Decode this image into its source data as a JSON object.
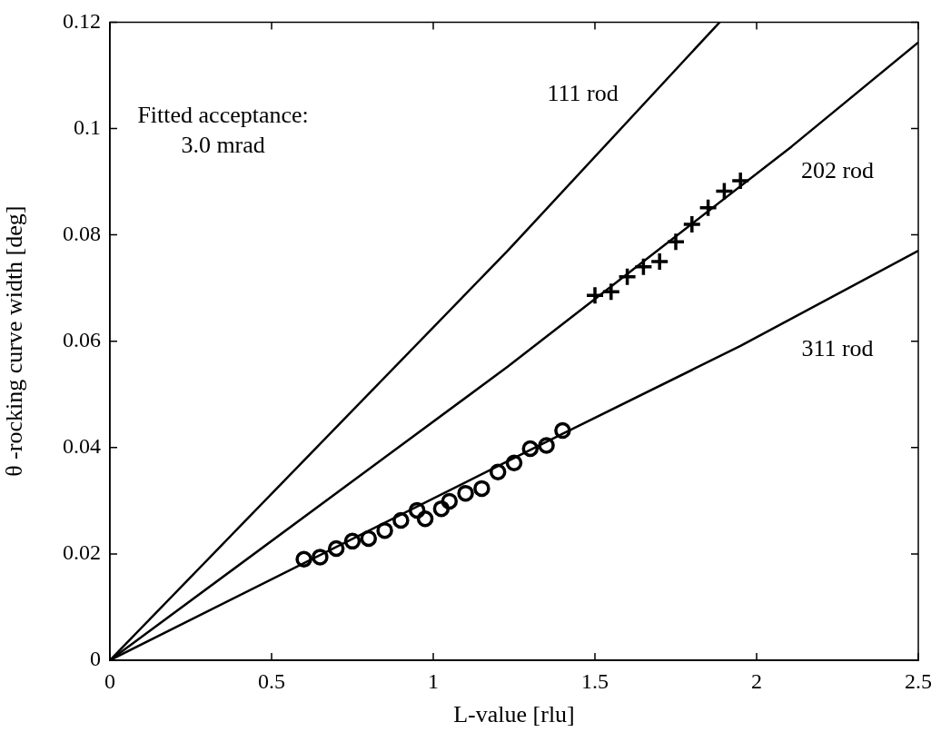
{
  "chart_data": {
    "type": "scatter",
    "xlabel": "L-value [rlu]",
    "ylabel": "θ -rocking curve width [deg]",
    "xlim": [
      0,
      2.5
    ],
    "xticks": [
      0,
      0.5,
      1,
      1.5,
      2,
      2.5
    ],
    "ylim": [
      0,
      0.12
    ],
    "yticks": [
      0,
      0.02,
      0.04,
      0.06,
      0.08,
      0.1,
      0.12
    ],
    "grid": false,
    "legend": false,
    "series": [
      {
        "type": "line",
        "marker": "none",
        "color": "#000000",
        "x": [
          0,
          1.23,
          1.886
        ],
        "values": [
          0,
          0.077,
          0.12
        ]
      },
      {
        "type": "line",
        "marker": "none",
        "color": "#000000",
        "x": [
          0,
          1.23,
          2.108,
          2.5
        ],
        "values": [
          0,
          0.0552,
          0.0966,
          0.1162
        ]
      },
      {
        "type": "line",
        "marker": "none",
        "color": "#000000",
        "x": [
          0,
          1.4,
          1.95,
          2.5
        ],
        "values": [
          0,
          0.0426,
          0.0591,
          0.077
        ]
      },
      {
        "marker": "cross",
        "color": "#000000",
        "x": [
          1.5,
          1.55,
          1.6,
          1.65,
          1.7,
          1.75,
          1.8,
          1.85,
          1.9,
          1.95
        ],
        "values": [
          0.0686,
          0.0693,
          0.0721,
          0.074,
          0.075,
          0.0787,
          0.082,
          0.0851,
          0.0882,
          0.0902
        ]
      },
      {
        "marker": "circle",
        "color": "#000000",
        "x": [
          0.6,
          0.65,
          0.7,
          0.75,
          0.8,
          0.85,
          0.9,
          0.95,
          0.975,
          1.025,
          1.05,
          1.1,
          1.15,
          1.2,
          1.25,
          1.3,
          1.35,
          1.4
        ],
        "values": [
          0.019,
          0.0194,
          0.021,
          0.0224,
          0.0229,
          0.0244,
          0.0263,
          0.0282,
          0.0266,
          0.0285,
          0.0299,
          0.0314,
          0.0323,
          0.0354,
          0.0371,
          0.0398,
          0.0404,
          0.0432
        ]
      }
    ],
    "annotations": [
      "111 rod",
      "202 rod",
      "311 rod",
      "Fitted acceptance:",
      "3.0 mrad"
    ]
  }
}
